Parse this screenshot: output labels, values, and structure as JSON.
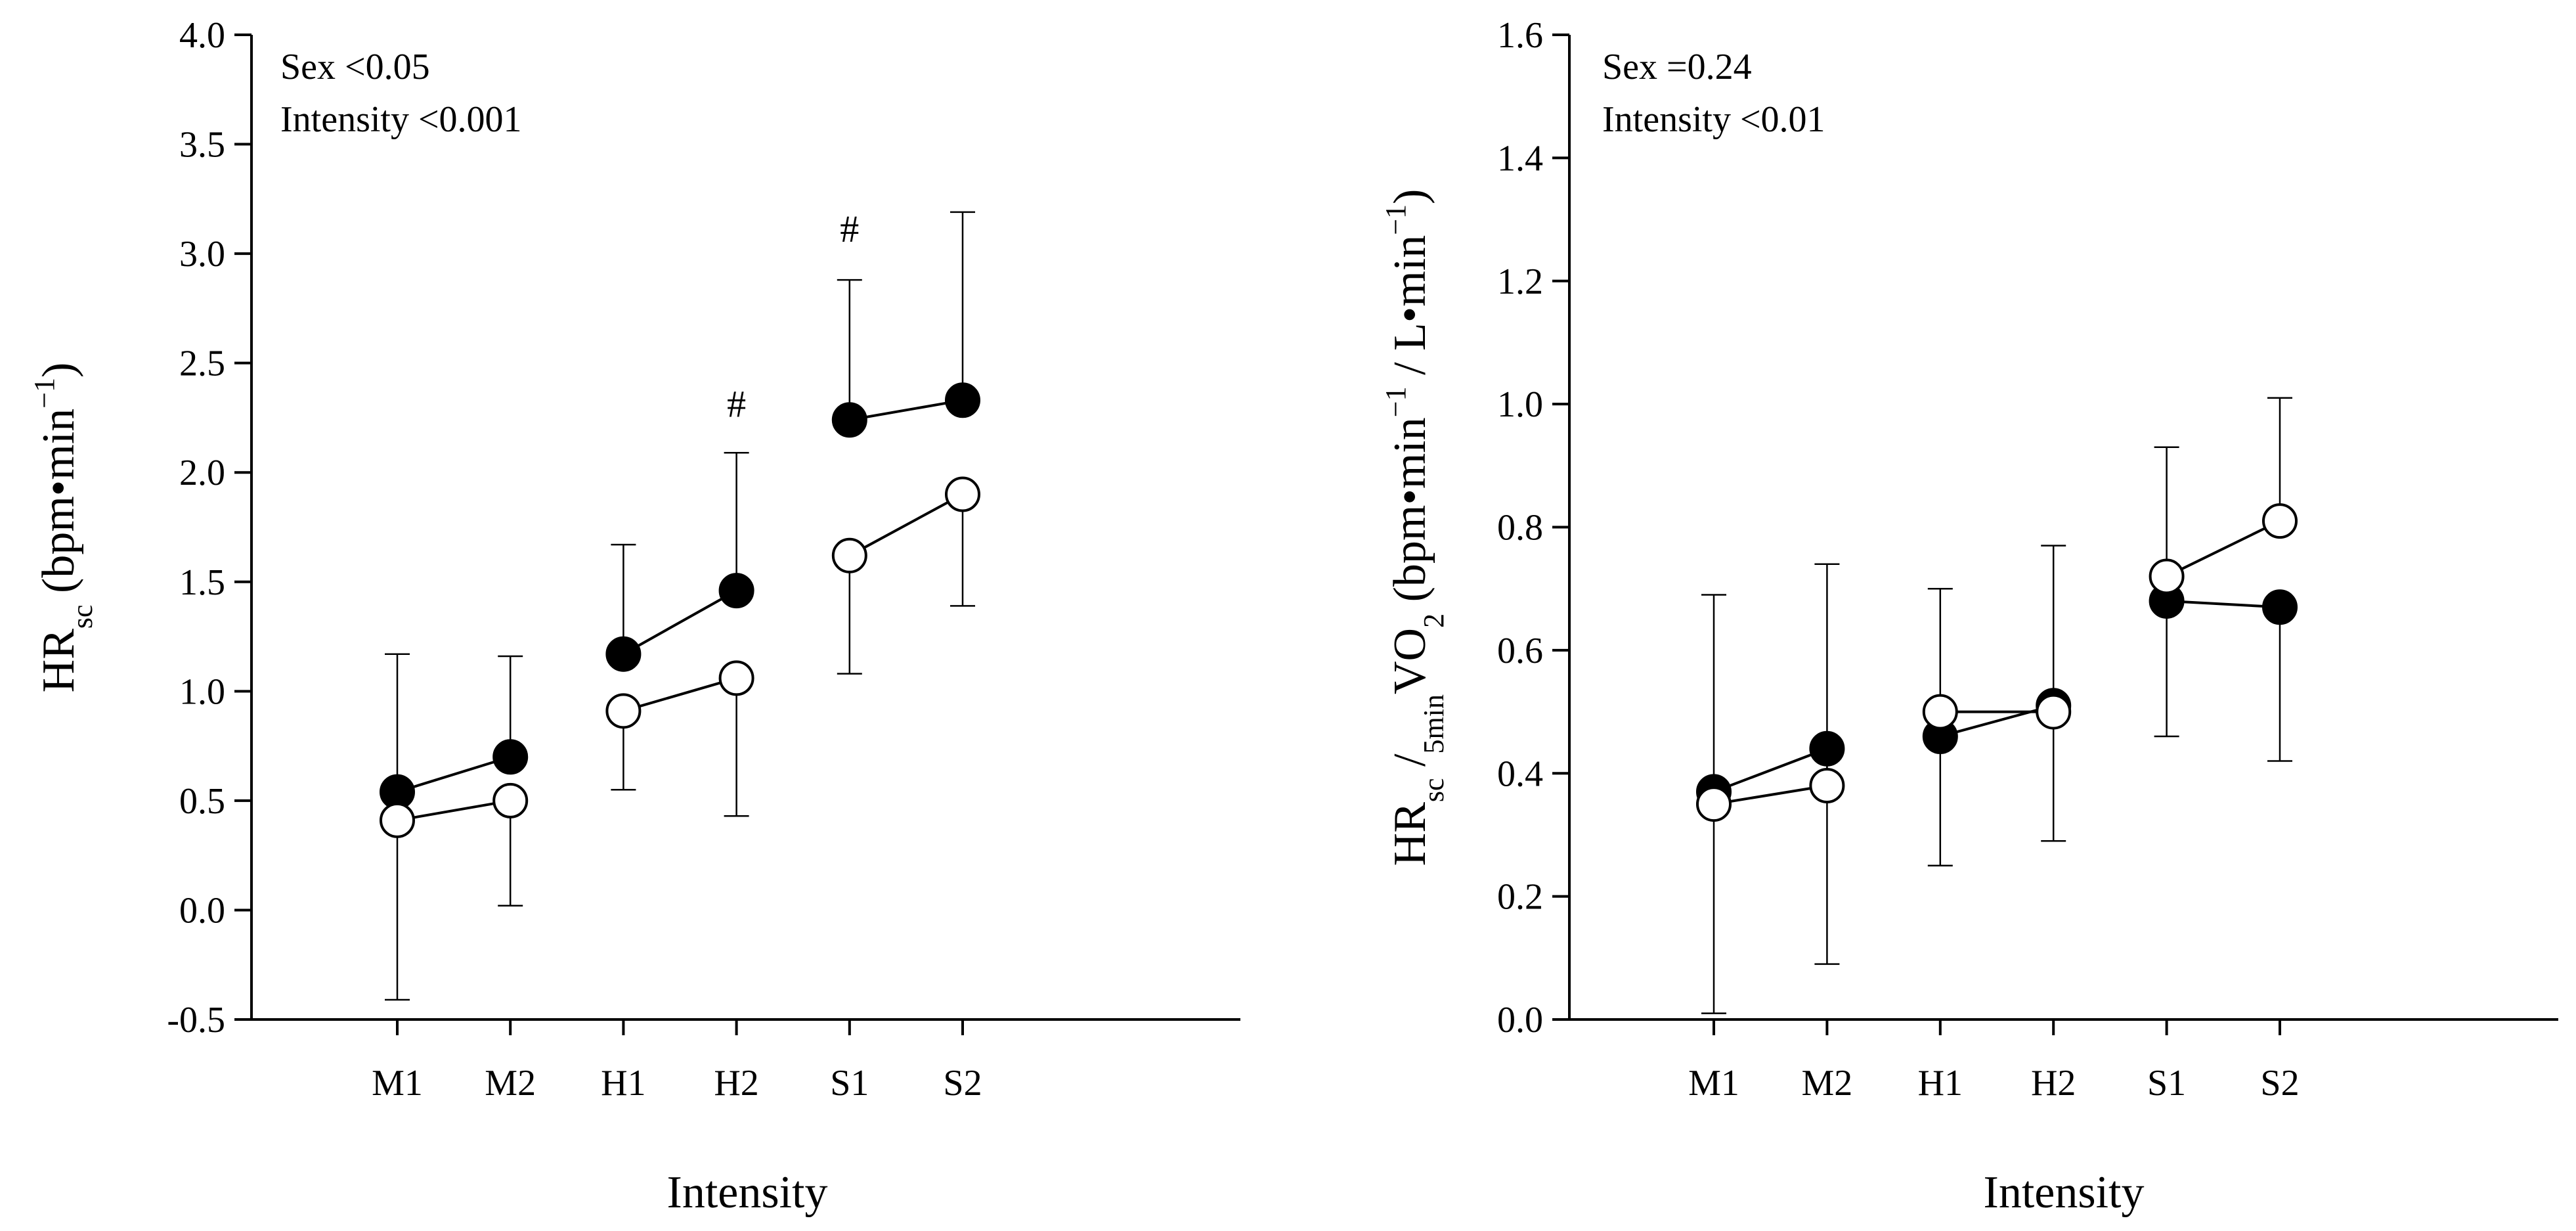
{
  "chart_data": [
    {
      "type": "line",
      "categories": [
        "M1",
        "M2",
        "H1",
        "H2",
        "S1",
        "S2"
      ],
      "xlabel": "Intensity",
      "ylabel": {
        "main": "HR",
        "sub": "sc",
        "unit_prefix": " (bpm•min",
        "sup": "−1",
        "unit_suffix": ")"
      },
      "ylim": [
        -0.5,
        4.0
      ],
      "yticks": [
        "-0.5",
        "0.0",
        "0.5",
        "1.0",
        "1.5",
        "2.0",
        "2.5",
        "3.0",
        "3.5",
        "4.0"
      ],
      "annotations": [
        "Sex <0.05",
        "Intensity <0.001"
      ],
      "markers": [
        {
          "category": "H2",
          "y": 2.2,
          "text": "#"
        },
        {
          "category": "S1",
          "y": 3.0,
          "text": "#"
        }
      ],
      "series": [
        {
          "style": "filled",
          "values": [
            0.54,
            0.7,
            1.17,
            1.46,
            2.24,
            2.33
          ],
          "err_upper": [
            1.17,
            1.16,
            1.67,
            2.09,
            2.88,
            3.19
          ]
        },
        {
          "style": "open",
          "values": [
            0.41,
            0.5,
            0.91,
            1.06,
            1.62,
            1.9
          ],
          "err_lower": [
            -0.41,
            0.02,
            0.55,
            0.43,
            1.08,
            1.39
          ]
        }
      ]
    },
    {
      "type": "line",
      "categories": [
        "M1",
        "M2",
        "H1",
        "H2",
        "S1",
        "S2"
      ],
      "xlabel": "Intensity",
      "ylabel": {
        "p1": "HR",
        "s1": "sc",
        "p2": " /",
        "s2": "5min",
        "p3": "VO",
        "s3": "2",
        "p4": " (bpm•min",
        "sup1": "−1",
        "p5": " / L•min",
        "sup2": "−1",
        "p6": ")"
      },
      "ylim": [
        0.0,
        1.6
      ],
      "yticks": [
        "0.0",
        "0.2",
        "0.4",
        "0.6",
        "0.8",
        "1.0",
        "1.2",
        "1.4",
        "1.6"
      ],
      "annotations": [
        "Sex =0.24",
        "Intensity <0.01"
      ],
      "markers": [],
      "series": [
        {
          "style": "filled",
          "values": [
            0.37,
            0.44,
            0.46,
            0.51,
            0.68,
            0.67
          ],
          "err_lower": [
            0.01,
            0.09,
            0.25,
            0.29,
            0.46,
            0.42
          ]
        },
        {
          "style": "open",
          "values": [
            0.35,
            0.38,
            0.5,
            0.5,
            0.72,
            0.81
          ],
          "err_upper": [
            0.69,
            0.74,
            0.7,
            0.77,
            0.93,
            1.01
          ]
        }
      ]
    }
  ]
}
